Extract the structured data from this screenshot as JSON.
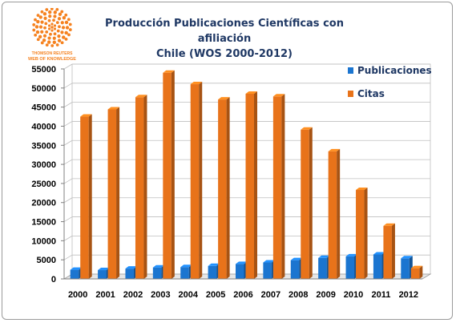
{
  "logo": {
    "icon": "thomson-reuters-logo-icon",
    "line1": "THOMSON REUTERS",
    "line2": "WEB OF KNOWLEDGE",
    "color": "#f58220"
  },
  "title_line1": "Producción Publicaciones Científicas con afiliación",
  "title_line2": "Chile (WOS 2000-2012)",
  "chart_data": {
    "type": "bar",
    "title": "Producción Publicaciones Científicas con afiliación Chile (WOS 2000-2012)",
    "categories": [
      "2000",
      "2001",
      "2002",
      "2003",
      "2004",
      "2005",
      "2006",
      "2007",
      "2008",
      "2009",
      "2010",
      "2011",
      "2012"
    ],
    "series": [
      {
        "name": "Publicaciones",
        "color": "#1b75d0",
        "values": [
          2400,
          2300,
          2700,
          3000,
          3100,
          3400,
          3900,
          4300,
          4900,
          5500,
          5900,
          6400,
          5400
        ]
      },
      {
        "name": "Citas",
        "color": "#e8731a",
        "values": [
          42500,
          44400,
          47600,
          54000,
          51000,
          47000,
          48500,
          47800,
          39100,
          33400,
          23300,
          13900,
          2800
        ]
      }
    ],
    "ylim": [
      0,
      55000
    ],
    "yticks": [
      "0",
      "5000",
      "10000",
      "15000",
      "20000",
      "25000",
      "30000",
      "35000",
      "40000",
      "45000",
      "50000",
      "55000"
    ],
    "legend_position": "top-right",
    "xlabel": "",
    "ylabel": ""
  }
}
